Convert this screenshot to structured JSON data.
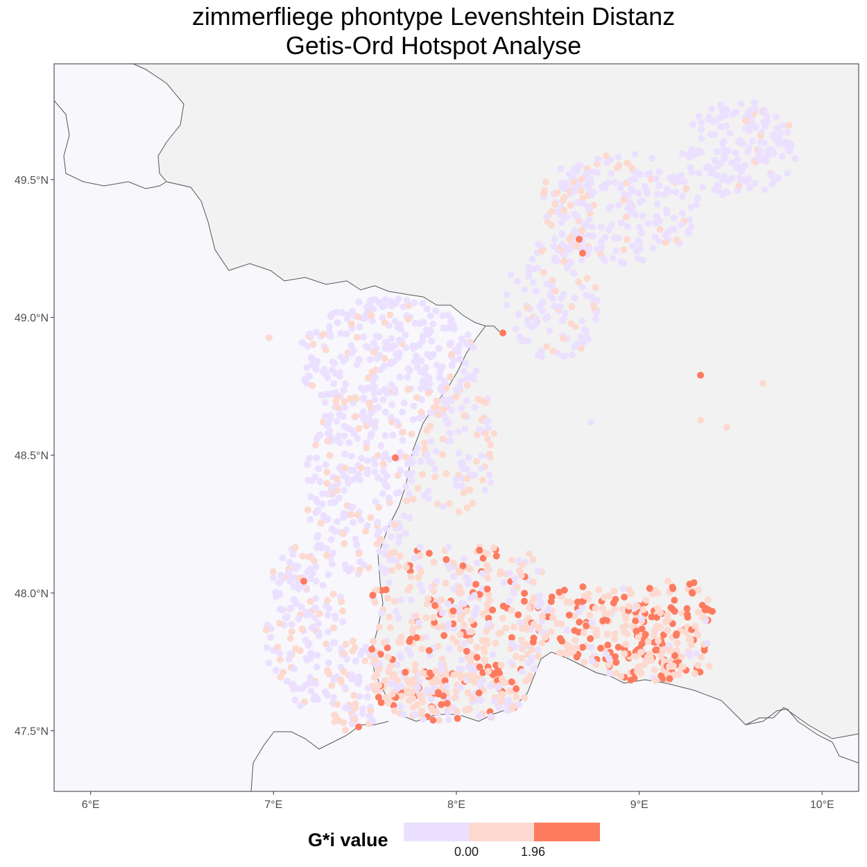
{
  "title": {
    "line1": "zimmerfliege phontype Levenshtein Distanz",
    "line2": "Getis-Ord Hotspot Analyse"
  },
  "axes": {
    "x_ticks": [
      "6°E",
      "7°E",
      "8°E",
      "9°E",
      "10°E"
    ],
    "y_ticks": [
      "49.5°N",
      "49.0°N",
      "48.5°N",
      "48.0°N",
      "47.5°N"
    ],
    "x_values": [
      6,
      7,
      8,
      9,
      10
    ],
    "y_values": [
      49.5,
      49.0,
      48.5,
      48.0,
      47.5
    ],
    "xlim": [
      5.8,
      10.2
    ],
    "ylim": [
      47.28,
      49.92
    ]
  },
  "legend": {
    "title": "G*i value",
    "breaks": [
      "0.00",
      "1.96"
    ],
    "colors": [
      "#ebe0ff",
      "#fdd9cf",
      "#fe7b5f"
    ]
  },
  "colors": {
    "land_background": "#f2f2f2",
    "outside_area": "#f7f7fc",
    "boundary": "#555555",
    "cold": "#ebe0ff",
    "warm": "#fdd9cf",
    "hot": "#fe7b5f"
  }
}
